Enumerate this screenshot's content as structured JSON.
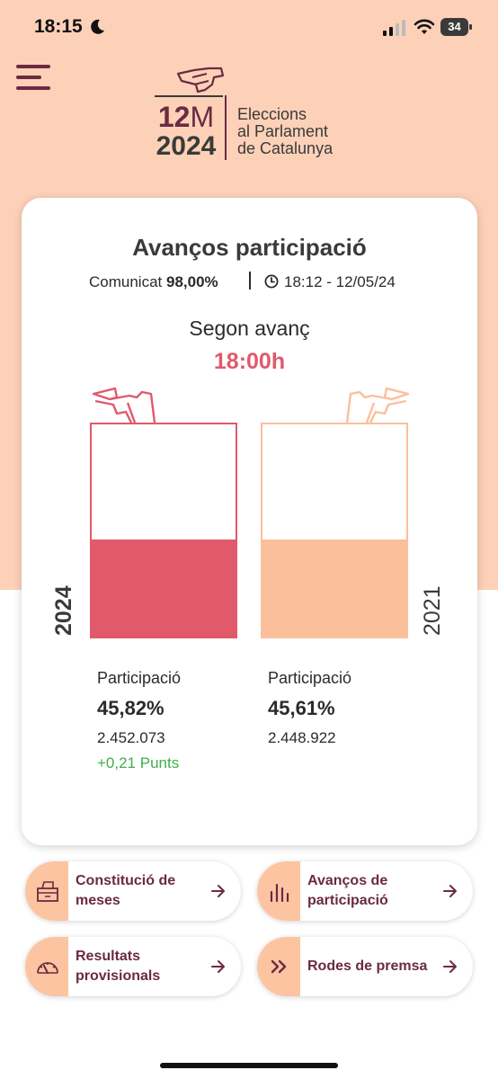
{
  "status_bar": {
    "time": "18:15",
    "battery": "34"
  },
  "header": {
    "logo_number": "12",
    "logo_letter": "M",
    "logo_year": "2024",
    "logo_line1": "Eleccions",
    "logo_line2": "al Parlament",
    "logo_line3": "de Catalunya"
  },
  "card": {
    "title": "Avanços participació",
    "comunicat_label": "Comunicat",
    "comunicat_value": "98,00%",
    "timestamp": "18:12 - 12/05/24",
    "avanc_label": "Segon avanç",
    "avanc_time": "18:00h"
  },
  "years": [
    {
      "year": "2024",
      "participation_label": "Participació",
      "percentage": "45,82%",
      "fill": 0.4582,
      "votes": "2.452.073",
      "diff": "+0,21 Punts"
    },
    {
      "year": "2021",
      "participation_label": "Participació",
      "percentage": "45,61%",
      "fill": 0.4561,
      "votes": "2.448.922",
      "diff": ""
    }
  ],
  "actions": [
    {
      "label": "Constitució de meses",
      "icon": "ballot-box-icon"
    },
    {
      "label": "Avanços de participació",
      "icon": "bar-chart-icon"
    },
    {
      "label": "Resultats provisionals",
      "icon": "gauge-icon"
    },
    {
      "label": "Rodes de premsa",
      "icon": "double-chevron-icon"
    }
  ],
  "colors": {
    "background_top": "#fdd1b8",
    "accent_2024": "#e05a6b",
    "accent_2021": "#fcbf9b",
    "brand": "#6b2a42",
    "positive": "#3db049"
  }
}
